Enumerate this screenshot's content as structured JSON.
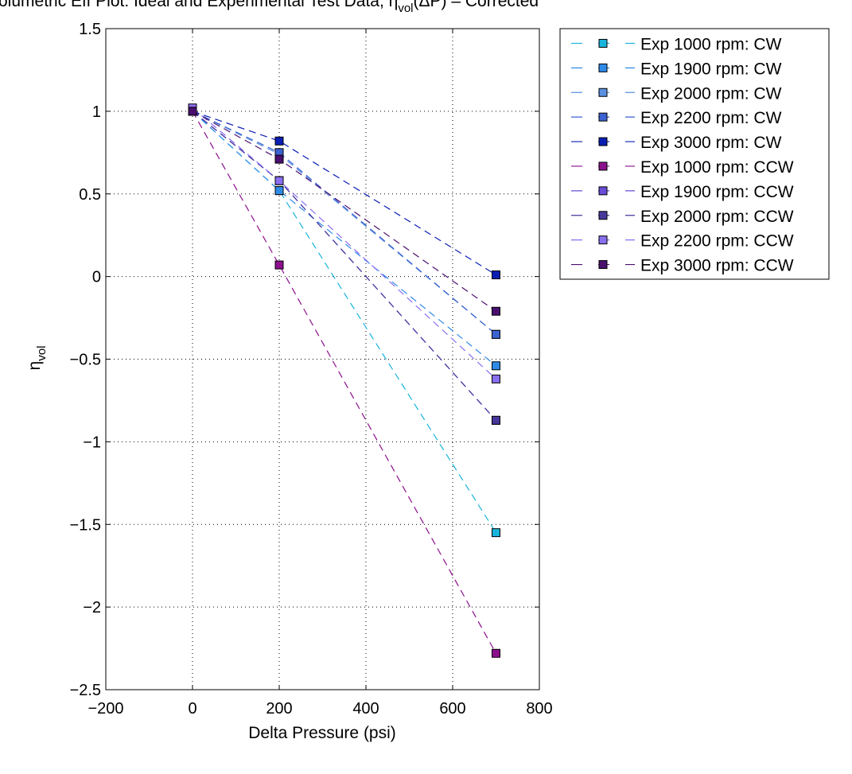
{
  "chart_data": {
    "type": "line",
    "title": "olumetric Eff Plot: Ideal and Experimental Test Data, η",
    "title_sub": "vol",
    "title_tail": "(ΔP) – Corrected",
    "xlabel": "Delta Pressure (psi)",
    "ylabel_main": "η",
    "ylabel_sub": "vol",
    "xlim": [
      -200,
      800
    ],
    "ylim": [
      -2.5,
      1.5
    ],
    "xticks": [
      -200,
      0,
      200,
      400,
      600,
      800
    ],
    "xtick_labels": [
      "−200",
      "0",
      "200",
      "400",
      "600",
      "800"
    ],
    "yticks": [
      -2.5,
      -2,
      -1.5,
      -1,
      -0.5,
      0,
      0.5,
      1,
      1.5
    ],
    "ytick_labels": [
      "−2.5",
      "−2",
      "−1.5",
      "−1",
      "−0.5",
      "0",
      "0.5",
      "1",
      "1.5"
    ],
    "grid": true,
    "legend_position": "outside-right-top",
    "x": [
      0,
      200,
      700
    ],
    "series": [
      {
        "name": "Exp 1000 rpm: CW",
        "color": "#19b4dc",
        "values": [
          1.0,
          0.52,
          -1.55
        ]
      },
      {
        "name": "Exp 1900 rpm: CW",
        "color": "#2f8be8",
        "values": [
          1.0,
          0.52,
          -0.54
        ]
      },
      {
        "name": "Exp 2000 rpm: CW",
        "color": "#5a90e0",
        "values": [
          1.0,
          0.74,
          -0.35
        ]
      },
      {
        "name": "Exp 2200 rpm: CW",
        "color": "#3c62d2",
        "values": [
          1.0,
          0.75,
          -0.35
        ]
      },
      {
        "name": "Exp 3000 rpm: CW",
        "color": "#0a1eb4",
        "values": [
          1.0,
          0.82,
          0.01
        ]
      },
      {
        "name": "Exp 1000 rpm: CCW",
        "color": "#8c0f8c",
        "values": [
          1.0,
          0.07,
          -2.28
        ]
      },
      {
        "name": "Exp 1900 rpm: CCW",
        "color": "#6a4cd6",
        "values": [
          1.0,
          0.58,
          -0.87
        ]
      },
      {
        "name": "Exp 2000 rpm: CCW",
        "color": "#46379c",
        "values": [
          1.0,
          0.58,
          -0.87
        ]
      },
      {
        "name": "Exp 2200 rpm: CCW",
        "color": "#8a6ef0",
        "values": [
          1.02,
          0.58,
          -0.62
        ]
      },
      {
        "name": "Exp 3000 rpm: CCW",
        "color": "#4a0f6e",
        "values": [
          1.0,
          0.71,
          -0.21
        ]
      }
    ]
  }
}
